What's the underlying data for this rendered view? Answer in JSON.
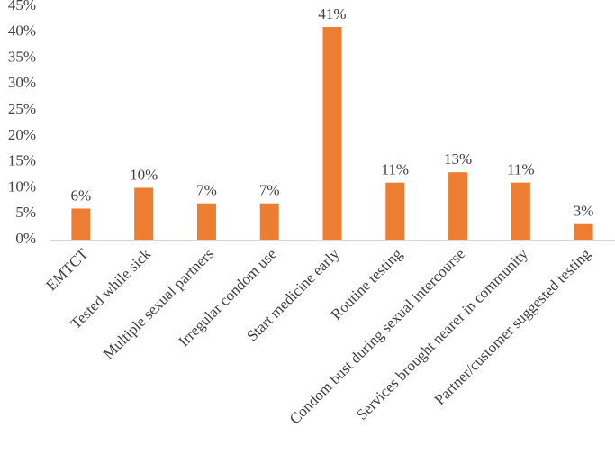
{
  "chart_data": {
    "type": "bar",
    "title": "",
    "xlabel": "",
    "ylabel": "",
    "categories": [
      "EMTCT",
      "Tested while sick",
      "Multiple sexual partners",
      "Irregular condom use",
      "Start medicine early",
      "Routine testing",
      "Condom bust during sexual intercourse",
      "Services brought nearer in community",
      "Partner/customer suggested testing"
    ],
    "values": [
      6,
      10,
      7,
      7,
      41,
      11,
      13,
      11,
      3
    ],
    "data_labels": [
      "6%",
      "10%",
      "7%",
      "7%",
      "41%",
      "11%",
      "13%",
      "11%",
      "3%"
    ],
    "ylim": [
      0,
      45
    ],
    "y_ticks": [
      0,
      5,
      10,
      15,
      20,
      25,
      30,
      35,
      40,
      45
    ],
    "y_tick_labels": [
      "0%",
      "5%",
      "10%",
      "15%",
      "20%",
      "25%",
      "30%",
      "35%",
      "40%",
      "45%"
    ],
    "grid": false,
    "legend": "none",
    "colors": {
      "bar": "#ED7D31",
      "text": "#404040",
      "axis": "#D9D9D9"
    }
  }
}
